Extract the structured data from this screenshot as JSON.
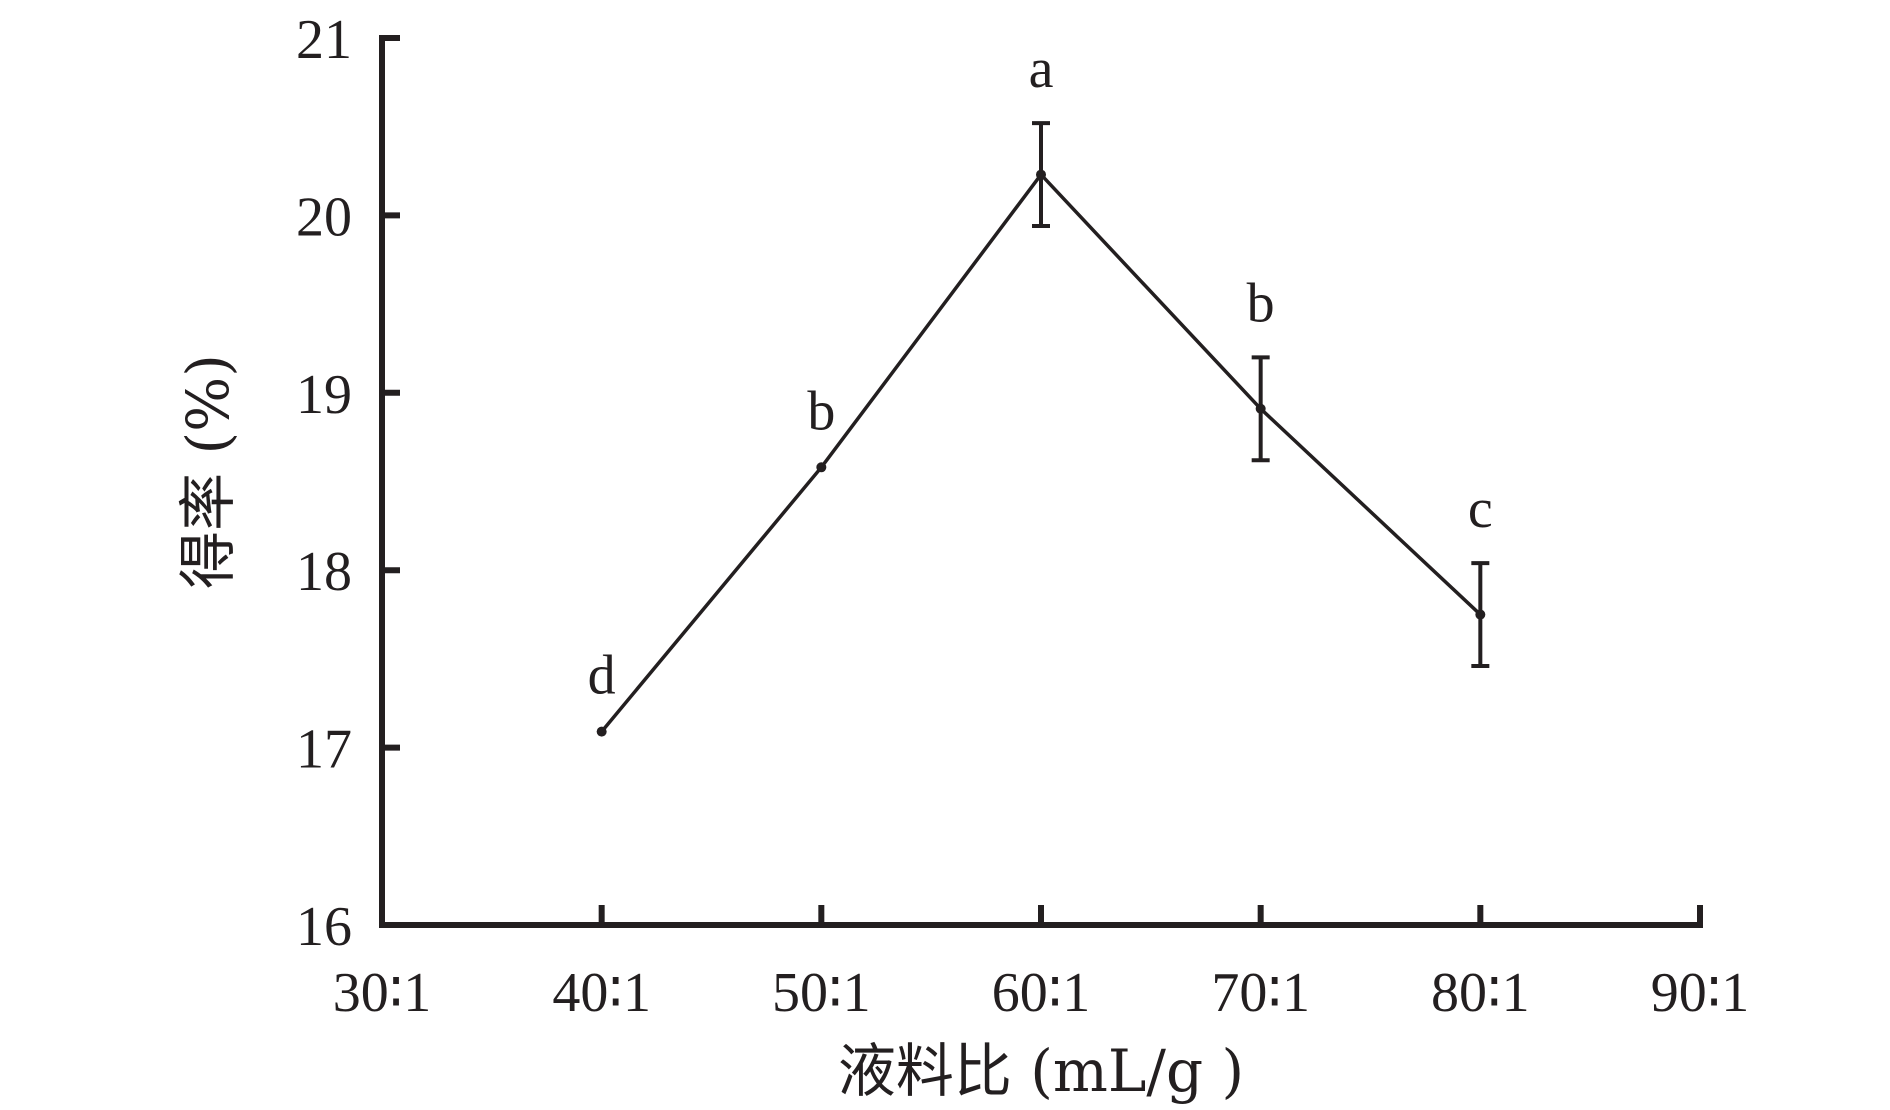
{
  "chart_data": {
    "type": "line",
    "title": "",
    "xlabel": "液料比 (mL/g )",
    "ylabel": "得率 (%)",
    "categories": [
      "30∶1",
      "40∶1",
      "50∶1",
      "60∶1",
      "70∶1",
      "80∶1",
      "90∶1"
    ],
    "ylim": [
      16,
      21
    ],
    "yticks": [
      "16",
      "17",
      "18",
      "19",
      "20",
      "21"
    ],
    "grid": false,
    "series": [
      {
        "x": [
          "40∶1",
          "50∶1",
          "60∶1",
          "70∶1",
          "80∶1"
        ],
        "values": [
          17.09,
          18.58,
          20.23,
          18.91,
          17.75
        ],
        "error": [
          0,
          0,
          0.29,
          0.29,
          0.29
        ],
        "significance": [
          "d",
          "b",
          "a",
          "b",
          "c"
        ]
      }
    ]
  }
}
